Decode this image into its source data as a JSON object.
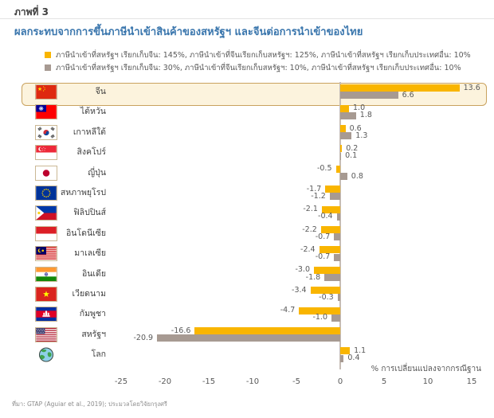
{
  "figure": {
    "label": "ภาพที่ 3"
  },
  "title": "ผลกระทบจากการขึ้นภาษีนำเข้าสินค้าของสหรัฐฯ และจีนต่อการนำเข้าของไทย",
  "legend": [
    {
      "icon": "legend-swatch-yellow",
      "color": "#F9B500",
      "label": "ภาษีนำเข้าที่สหรัฐฯ เรียกเก็บจีน: 145%, ภาษีนำเข้าที่จีนเรียกเก็บสหรัฐฯ: 125%, ภาษีนำเข้าที่สหรัฐฯ เรียกเก็บประเทศอื่น: 10%"
    },
    {
      "icon": "legend-swatch-gray",
      "color": "#A79A92",
      "label": "ภาษีนำเข้าที่สหรัฐฯ เรียกเก็บจีน: 30%, ภาษีนำเข้าที่จีนเรียกเก็บสหรัฐฯ: 10%, ภาษีนำเข้าที่สหรัฐฯ เรียกเก็บประเทศอื่น: 10%"
    }
  ],
  "chart_data": {
    "type": "bar",
    "orientation": "horizontal",
    "categories": [
      "จีน",
      "ไต้หวัน",
      "เกาหลีใต้",
      "สิงคโปร์",
      "ญี่ปุ่น",
      "สหภาพยุโรป",
      "ฟิลิปปินส์",
      "อินโดนีเซีย",
      "มาเลเซีย",
      "อินเดีย",
      "เวียดนาม",
      "กัมพูชา",
      "สหรัฐฯ",
      "โลก"
    ],
    "category_icons": [
      "flag-china-icon",
      "flag-taiwan-icon",
      "flag-south-korea-icon",
      "flag-singapore-icon",
      "flag-japan-icon",
      "flag-eu-icon",
      "flag-philippines-icon",
      "flag-indonesia-icon",
      "flag-malaysia-icon",
      "flag-india-icon",
      "flag-vietnam-icon",
      "flag-cambodia-icon",
      "flag-usa-icon",
      "globe-icon"
    ],
    "series": [
      {
        "name": "สหรัฐฯเก็บจีน 145% / จีนเก็บสหรัฐฯ 125% / ประเทศอื่น 10%",
        "color": "#F9B500",
        "values": [
          13.6,
          1.0,
          0.6,
          0.2,
          -0.5,
          -1.7,
          -2.1,
          -2.2,
          -2.4,
          -3.0,
          -3.4,
          -4.7,
          -16.6,
          1.1
        ]
      },
      {
        "name": "สหรัฐฯเก็บจีน 30% / จีนเก็บสหรัฐฯ 10% / ประเทศอื่น 10%",
        "color": "#A79A92",
        "values": [
          6.6,
          1.8,
          1.3,
          0.1,
          0.8,
          -1.2,
          -0.4,
          -0.7,
          -0.7,
          -1.8,
          -0.3,
          -1.0,
          -20.9,
          0.4
        ]
      }
    ],
    "xlim": [
      -25,
      15
    ],
    "xticks": [
      -25,
      -20,
      -15,
      -10,
      -5,
      0,
      5,
      10,
      15
    ],
    "xlabel": "% การเปลี่ยนแปลงจากกรณีฐาน",
    "grid": false,
    "legend_position": "top",
    "highlighted_category": "จีน",
    "highlight_style": {
      "fill": "#FCF3DD",
      "border": "#C9A25E"
    }
  },
  "source": "ที่มา: GTAP (Aguiar et al., 2019); ประมวลโดยวิจัยกรุงศรี"
}
